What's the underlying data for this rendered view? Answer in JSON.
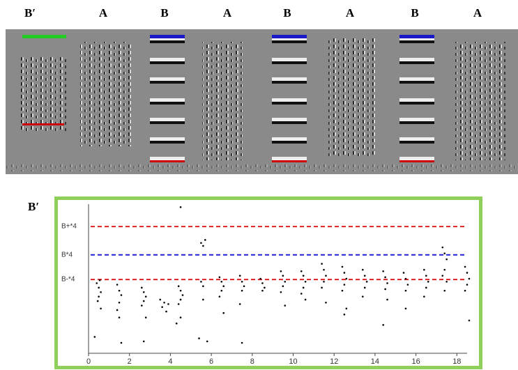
{
  "spectrogram": {
    "labels": [
      "B′",
      "A",
      "B",
      "A",
      "B",
      "A",
      "B",
      "A"
    ]
  },
  "chart_data": {
    "type": "scatter",
    "panel_label": "B′",
    "xlim": [
      0,
      18.5
    ],
    "xticks": [
      0,
      2,
      4,
      6,
      8,
      10,
      12,
      14,
      16,
      18
    ],
    "ylim": [
      0,
      100
    ],
    "reference_lines": [
      {
        "label": "B+*4",
        "value": 85,
        "color": "#e02020"
      },
      {
        "label": "B*4",
        "value": 66,
        "color": "#2020d0"
      },
      {
        "label": "B-*4",
        "value": 49.5,
        "color": "#e02020"
      }
    ],
    "series": [
      {
        "color": "#000000",
        "x": [
          0.4,
          0.5,
          0.6,
          0.5,
          0.45,
          0.6,
          0.3,
          0.55,
          1.4,
          1.5,
          1.6,
          1.5,
          1.4,
          1.5,
          1.6,
          2.6,
          2.7,
          2.8,
          2.7,
          2.6,
          2.8,
          2.7,
          3.5,
          3.7,
          3.9,
          3.6,
          3.8,
          4.4,
          4.5,
          4.6,
          4.5,
          4.4,
          4.3,
          4.5,
          4.5,
          5.5,
          5.6,
          5.7,
          5.5,
          5.6,
          5.4,
          5.8,
          5.6,
          6.4,
          6.5,
          6.6,
          6.5,
          6.4,
          6.6,
          7.4,
          7.5,
          7.6,
          7.5,
          7.4,
          7.5,
          8.4,
          8.5,
          8.6,
          8.5,
          9.4,
          9.5,
          9.6,
          9.5,
          9.4,
          9.6,
          10.4,
          10.5,
          10.6,
          10.5,
          10.4,
          10.6,
          11.4,
          11.5,
          11.6,
          11.5,
          11.4,
          11.6,
          12.4,
          12.5,
          12.6,
          12.5,
          12.4,
          12.6,
          12.5,
          13.4,
          13.5,
          13.6,
          13.5,
          13.4,
          14.4,
          14.5,
          14.6,
          14.5,
          14.6,
          14.4,
          15.4,
          15.5,
          15.6,
          15.5,
          15.5,
          16.4,
          16.5,
          16.6,
          16.5,
          16.4,
          17.3,
          17.4,
          17.5,
          17.4,
          17.3,
          17.5,
          17.4,
          18.4,
          18.5,
          18.6,
          18.5,
          18.4,
          18.6
        ],
        "values": [
          47,
          44,
          41,
          38,
          35,
          30,
          11,
          49,
          46,
          42,
          39,
          34,
          29,
          24,
          7,
          44,
          41,
          38,
          35,
          32,
          24,
          8,
          36,
          34,
          33,
          31,
          28,
          45,
          42,
          39,
          36,
          33,
          20,
          98,
          24,
          74,
          72,
          76,
          48,
          45,
          10,
          8,
          36,
          51,
          48,
          45,
          42,
          38,
          27,
          52,
          48,
          45,
          42,
          33,
          7,
          50,
          47,
          44,
          42,
          55,
          52,
          48,
          45,
          41,
          32,
          55,
          52,
          48,
          44,
          40,
          36,
          60,
          56,
          52,
          48,
          44,
          34,
          58,
          54,
          50,
          46,
          42,
          30,
          26,
          56,
          52,
          48,
          44,
          38,
          55,
          51,
          47,
          43,
          36,
          19,
          54,
          50,
          46,
          42,
          30,
          56,
          52,
          48,
          44,
          38,
          71,
          67,
          63,
          56,
          52,
          48,
          42,
          58,
          54,
          50,
          46,
          42,
          22
        ]
      }
    ]
  }
}
